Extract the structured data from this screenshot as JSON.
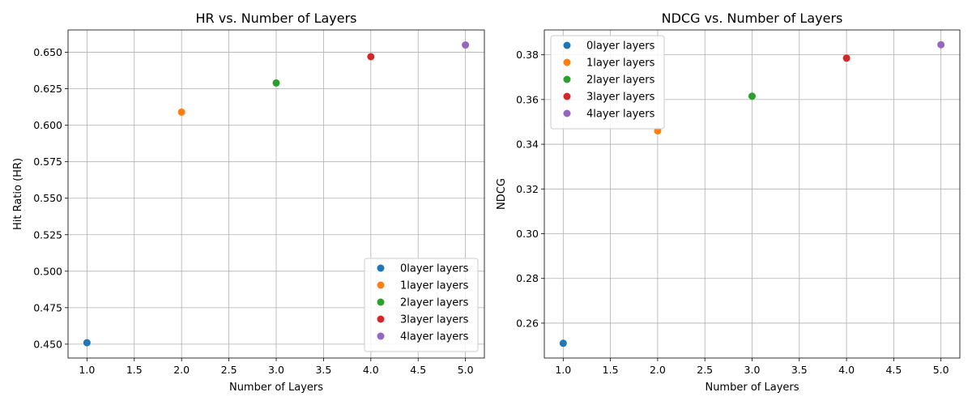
{
  "chart_data": [
    {
      "type": "scatter",
      "title": "HR vs. Number of Layers",
      "xlabel": "Number of Layers",
      "ylabel": "Hit Ratio (HR)",
      "xlim": [
        0.8,
        5.2
      ],
      "ylim": [
        0.4405,
        0.6653
      ],
      "xticks": [
        1.0,
        1.5,
        2.0,
        2.5,
        3.0,
        3.5,
        4.0,
        4.5,
        5.0
      ],
      "xtick_labels": [
        "1.0",
        "1.5",
        "2.0",
        "2.5",
        "3.0",
        "3.5",
        "4.0",
        "4.5",
        "5.0"
      ],
      "yticks": [
        0.45,
        0.475,
        0.5,
        0.525,
        0.55,
        0.575,
        0.6,
        0.625,
        0.65
      ],
      "ytick_labels": [
        "0.450",
        "0.475",
        "0.500",
        "0.525",
        "0.550",
        "0.575",
        "0.600",
        "0.625",
        "0.650"
      ],
      "grid": true,
      "legend": "lower-right",
      "series": [
        {
          "name": "0layer layers",
          "x": [
            1
          ],
          "y": [
            0.451
          ],
          "color": "#1f77b4"
        },
        {
          "name": "1layer layers",
          "x": [
            2
          ],
          "y": [
            0.609
          ],
          "color": "#ff7f0e"
        },
        {
          "name": "2layer layers",
          "x": [
            3
          ],
          "y": [
            0.629
          ],
          "color": "#2ca02c"
        },
        {
          "name": "3layer layers",
          "x": [
            4
          ],
          "y": [
            0.647
          ],
          "color": "#d62728"
        },
        {
          "name": "4layer layers",
          "x": [
            5
          ],
          "y": [
            0.655
          ],
          "color": "#9467bd"
        }
      ]
    },
    {
      "type": "scatter",
      "title": "NDCG vs. Number of Layers",
      "xlabel": "Number of Layers",
      "ylabel": "NDCG",
      "xlim": [
        0.8,
        5.2
      ],
      "ylim": [
        0.2444,
        0.3911
      ],
      "xticks": [
        1.0,
        1.5,
        2.0,
        2.5,
        3.0,
        3.5,
        4.0,
        4.5,
        5.0
      ],
      "xtick_labels": [
        "1.0",
        "1.5",
        "2.0",
        "2.5",
        "3.0",
        "3.5",
        "4.0",
        "4.5",
        "5.0"
      ],
      "yticks": [
        0.26,
        0.28,
        0.3,
        0.32,
        0.34,
        0.36,
        0.38
      ],
      "ytick_labels": [
        "0.26",
        "0.28",
        "0.30",
        "0.32",
        "0.34",
        "0.36",
        "0.38"
      ],
      "grid": true,
      "legend": "upper-left",
      "series": [
        {
          "name": "0layer layers",
          "x": [
            1
          ],
          "y": [
            0.251
          ],
          "color": "#1f77b4"
        },
        {
          "name": "1layer layers",
          "x": [
            2
          ],
          "y": [
            0.346
          ],
          "color": "#ff7f0e"
        },
        {
          "name": "2layer layers",
          "x": [
            3
          ],
          "y": [
            0.3615
          ],
          "color": "#2ca02c"
        },
        {
          "name": "3layer layers",
          "x": [
            4
          ],
          "y": [
            0.3785
          ],
          "color": "#d62728"
        },
        {
          "name": "4layer layers",
          "x": [
            5
          ],
          "y": [
            0.3845
          ],
          "color": "#9467bd"
        }
      ]
    }
  ]
}
